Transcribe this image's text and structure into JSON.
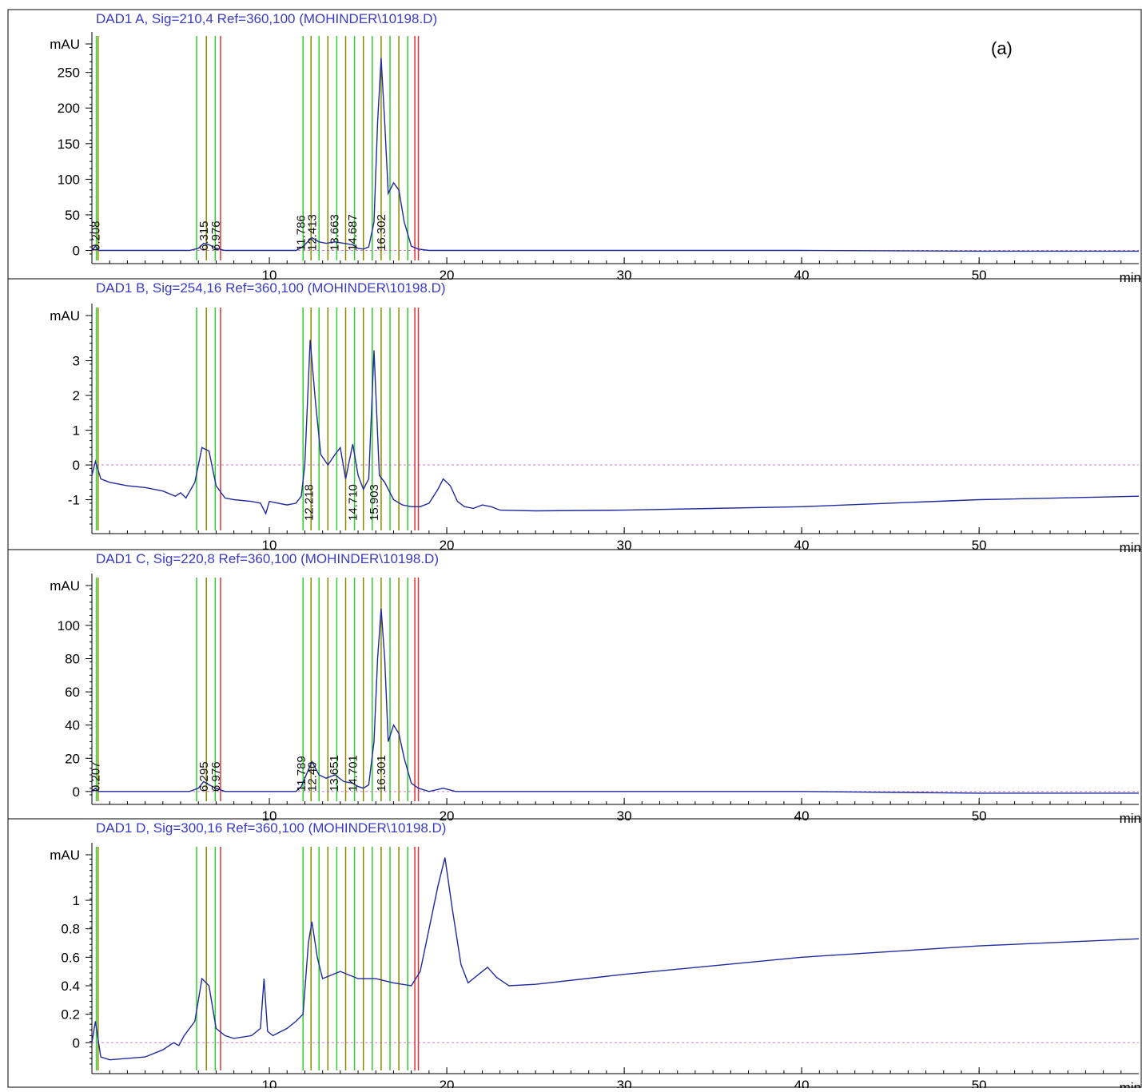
{
  "figure_label": "(a)",
  "colors": {
    "trace": "#1f2b9c",
    "title": "#3a3ac4",
    "event_green": "#33cc33",
    "event_olive": "#8a8a00",
    "event_red": "#dd3333",
    "baseline": "#c040c0",
    "axis": "#000000"
  },
  "chart_data": [
    {
      "type": "line",
      "title": "DAD1 A, Sig=210,4 Ref=360,100 (MOHINDER\\10198.D)",
      "ylabel": "mAU",
      "xlabel": "min",
      "xlim": [
        0,
        59
      ],
      "ylim": [
        -5,
        290
      ],
      "yticks": [
        0,
        50,
        100,
        150,
        200,
        250
      ],
      "xticks": [
        10,
        20,
        30,
        40,
        50
      ],
      "grid": false,
      "peak_labels": [
        {
          "x": 0.208,
          "label": "0.208"
        },
        {
          "x": 6.315,
          "label": "6.315"
        },
        {
          "x": 6.976,
          "label": "6.976"
        },
        {
          "x": 11.786,
          "label": "11.786"
        },
        {
          "x": 12.413,
          "label": "12.413"
        },
        {
          "x": 13.663,
          "label": "13.663"
        },
        {
          "x": 14.687,
          "label": "14.687"
        },
        {
          "x": 16.302,
          "label": "16.302"
        }
      ],
      "series": [
        {
          "x": [
            0,
            0.2,
            0.4,
            1,
            3,
            5.5,
            6.0,
            6.3,
            6.6,
            7.0,
            7.5,
            8,
            10,
            11.5,
            11.8,
            12.0,
            12.4,
            12.8,
            13.2,
            13.7,
            14.2,
            14.7,
            15.0,
            15.3,
            15.6,
            15.9,
            16.1,
            16.3,
            16.5,
            16.7,
            17.0,
            17.3,
            17.6,
            18.0,
            18.4,
            19,
            20,
            25,
            30,
            40,
            50,
            59
          ],
          "values": [
            0,
            6,
            0,
            0,
            0,
            0,
            3,
            10,
            8,
            3,
            0,
            0,
            0,
            0,
            4,
            8,
            18,
            12,
            10,
            12,
            10,
            8,
            3,
            2,
            5,
            40,
            180,
            270,
            180,
            80,
            95,
            85,
            40,
            6,
            2,
            0,
            0,
            0,
            0,
            0,
            -1,
            -1
          ]
        }
      ]
    },
    {
      "type": "line",
      "title": "DAD1 B, Sig=254,16 Ref=360,100 (MOHINDER\\10198.D)",
      "ylabel": "mAU",
      "xlabel": "min",
      "xlim": [
        0,
        59
      ],
      "ylim": [
        -1.7,
        4.3
      ],
      "yticks": [
        -1,
        0,
        1,
        2,
        3
      ],
      "xticks": [
        10,
        20,
        30,
        40,
        50
      ],
      "grid": false,
      "peak_labels": [
        {
          "x": 12.218,
          "label": "12.218"
        },
        {
          "x": 14.71,
          "label": "14.710"
        },
        {
          "x": 15.903,
          "label": "15.903"
        }
      ],
      "series": [
        {
          "x": [
            0,
            0.2,
            0.5,
            1,
            2,
            3,
            4,
            4.7,
            5.0,
            5.3,
            5.8,
            6.2,
            6.6,
            7.0,
            7.5,
            8,
            9,
            9.5,
            9.8,
            10,
            10.5,
            11,
            11.5,
            11.8,
            12.0,
            12.3,
            12.6,
            12.9,
            13.3,
            13.7,
            14.0,
            14.3,
            14.7,
            15.0,
            15.3,
            15.6,
            15.9,
            16.2,
            16.5,
            17,
            17.5,
            18,
            18.5,
            19.0,
            19.5,
            19.8,
            20.2,
            20.6,
            21,
            21.5,
            22,
            22.5,
            23,
            25,
            30,
            40,
            50,
            59
          ],
          "values": [
            -0.3,
            0.1,
            -0.4,
            -0.5,
            -0.6,
            -0.65,
            -0.75,
            -0.9,
            -0.8,
            -0.95,
            -0.5,
            0.5,
            0.4,
            -0.6,
            -0.95,
            -1.0,
            -1.05,
            -1.1,
            -1.4,
            -1.05,
            -1.1,
            -1.15,
            -1.1,
            -0.9,
            0.0,
            3.6,
            1.8,
            0.3,
            0.0,
            0.3,
            0.5,
            -0.4,
            0.6,
            -0.3,
            -0.7,
            -0.4,
            3.3,
            -0.3,
            -0.5,
            -1.0,
            -1.15,
            -1.2,
            -1.2,
            -1.1,
            -0.7,
            -0.4,
            -0.6,
            -1.05,
            -1.2,
            -1.25,
            -1.15,
            -1.2,
            -1.3,
            -1.32,
            -1.3,
            -1.2,
            -1.0,
            -0.9
          ]
        }
      ]
    },
    {
      "type": "line",
      "title": "DAD1 C, Sig=220,8 Ref=360,100 (MOHINDER\\10198.D)",
      "ylabel": "mAU",
      "xlabel": "min",
      "xlim": [
        0,
        59
      ],
      "ylim": [
        -2,
        124
      ],
      "yticks": [
        0,
        20,
        40,
        60,
        80,
        100
      ],
      "xticks": [
        10,
        20,
        30,
        40,
        50
      ],
      "grid": false,
      "peak_labels": [
        {
          "x": 0.207,
          "label": "0.207"
        },
        {
          "x": 6.295,
          "label": "6.295"
        },
        {
          "x": 6.976,
          "label": "6.976"
        },
        {
          "x": 11.789,
          "label": "11.789"
        },
        {
          "x": 12.4,
          "label": "12.40"
        },
        {
          "x": 13.651,
          "label": "13.651"
        },
        {
          "x": 14.701,
          "label": "14.701"
        },
        {
          "x": 16.301,
          "label": "16.301"
        }
      ],
      "series": [
        {
          "x": [
            0,
            0.2,
            0.4,
            1,
            3,
            5.5,
            6.0,
            6.3,
            6.6,
            7.0,
            7.5,
            8,
            10,
            11.5,
            11.8,
            12.0,
            12.4,
            12.8,
            13.2,
            13.7,
            14.2,
            14.7,
            15.0,
            15.3,
            15.6,
            15.9,
            16.1,
            16.3,
            16.5,
            16.7,
            17.0,
            17.3,
            17.6,
            18.0,
            18.4,
            19,
            19.8,
            20.5,
            25,
            30,
            40,
            50,
            59
          ],
          "values": [
            0,
            2,
            0,
            0,
            0,
            0,
            2,
            6,
            4,
            2,
            0,
            0,
            0,
            0,
            3,
            8,
            18,
            10,
            8,
            10,
            6,
            5,
            3,
            2,
            4,
            30,
            80,
            110,
            80,
            30,
            40,
            35,
            20,
            5,
            2,
            0,
            2,
            0,
            0,
            0,
            0,
            -1,
            -1
          ]
        }
      ]
    },
    {
      "type": "line",
      "title": "DAD1 D, Sig=300,16 Ref=360,100 (MOHINDER\\10198.D)",
      "ylabel": "mAU",
      "xlabel": "min",
      "xlim": [
        0,
        59
      ],
      "ylim": [
        -0.15,
        1.32
      ],
      "yticks": [
        0,
        0.2,
        0.4,
        0.6,
        0.8,
        1
      ],
      "xticks": [
        10,
        20,
        30,
        40,
        50
      ],
      "grid": false,
      "peak_labels": [],
      "series": [
        {
          "x": [
            0,
            0.2,
            0.5,
            1,
            2,
            3,
            4,
            4.6,
            4.9,
            5.2,
            5.8,
            6.2,
            6.6,
            7.0,
            7.5,
            8,
            9,
            9.5,
            9.7,
            9.9,
            10.2,
            11,
            11.5,
            11.9,
            12.2,
            12.4,
            12.7,
            13.0,
            14,
            15,
            16,
            17,
            18,
            18.5,
            19.0,
            19.5,
            19.9,
            20.3,
            20.8,
            21.2,
            21.8,
            22.3,
            22.8,
            23.5,
            25,
            30,
            40,
            50,
            59
          ],
          "values": [
            0.0,
            0.15,
            -0.1,
            -0.12,
            -0.11,
            -0.1,
            -0.05,
            0.0,
            -0.02,
            0.05,
            0.15,
            0.45,
            0.4,
            0.1,
            0.05,
            0.03,
            0.05,
            0.1,
            0.45,
            0.08,
            0.05,
            0.1,
            0.15,
            0.2,
            0.7,
            0.85,
            0.6,
            0.45,
            0.5,
            0.45,
            0.45,
            0.42,
            0.4,
            0.5,
            0.8,
            1.1,
            1.3,
            0.95,
            0.55,
            0.42,
            0.48,
            0.53,
            0.46,
            0.4,
            0.41,
            0.48,
            0.6,
            0.68,
            0.73
          ]
        }
      ]
    }
  ]
}
